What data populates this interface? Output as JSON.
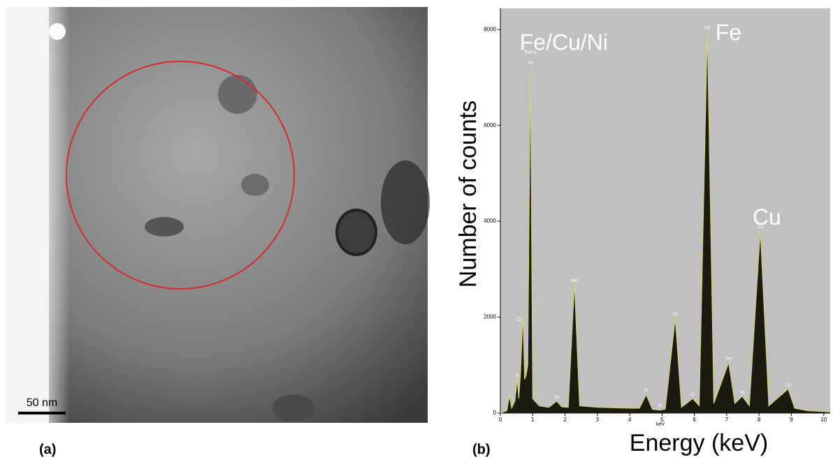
{
  "panel_a": {
    "label": "(a)",
    "scale_bar": "50 nm"
  },
  "chart_data": {
    "type": "line",
    "label": "(b)",
    "xlabel": "Energy (keV)",
    "ylabel": "Number of counts",
    "x_unit": "keV",
    "x": [
      0,
      0.2,
      0.28,
      0.35,
      0.45,
      0.52,
      0.57,
      0.62,
      0.7,
      0.75,
      0.8,
      0.85,
      0.93,
      1.0,
      1.2,
      1.5,
      1.74,
      1.9,
      2.1,
      2.29,
      2.45,
      3,
      4,
      4.3,
      4.51,
      4.7,
      4.93,
      5.1,
      5.41,
      5.6,
      5.95,
      6.15,
      6.4,
      6.6,
      7.06,
      7.25,
      7.48,
      7.7,
      8.04,
      8.3,
      8.9,
      9.1,
      9.5,
      10,
      10.2
    ],
    "values": [
      0,
      50,
      350,
      100,
      250,
      700,
      300,
      800,
      2050,
      700,
      800,
      1000,
      7200,
      300,
      150,
      120,
      250,
      130,
      120,
      2700,
      150,
      120,
      100,
      100,
      380,
      80,
      60,
      80,
      1980,
      120,
      300,
      150,
      7950,
      200,
      1050,
      200,
      350,
      150,
      3800,
      150,
      500,
      100,
      50,
      30,
      20
    ],
    "color": "#d8d860",
    "xlim": [
      0,
      10.2
    ],
    "ylim": [
      0,
      8440
    ],
    "xticks": [
      0,
      1,
      2,
      3,
      4,
      5,
      6,
      7,
      8,
      9,
      10
    ],
    "yticks": [
      0,
      2000,
      4000,
      6000,
      8000
    ],
    "labels_large": [
      {
        "text": "Fe/Cu/Ni",
        "x": 0.6,
        "y": 7700
      },
      {
        "text": "Fe",
        "x": 6.65,
        "y": 7900
      },
      {
        "text": "Cu",
        "x": 7.8,
        "y": 4050
      }
    ],
    "labels_small": [
      {
        "text": "FeCu",
        "x": 0.93,
        "y": 7520
      },
      {
        "text": "Ni",
        "x": 0.93,
        "y": 7300
      },
      {
        "text": "Cr",
        "x": 0.6,
        "y": 1950
      },
      {
        "text": "Ti",
        "x": 0.52,
        "y": 760
      },
      {
        "text": "Si",
        "x": 1.74,
        "y": 330
      },
      {
        "text": "Mo",
        "x": 2.29,
        "y": 2760
      },
      {
        "text": "Ti",
        "x": 4.51,
        "y": 460
      },
      {
        "text": "Ti",
        "x": 4.93,
        "y": 140
      },
      {
        "text": "Cr",
        "x": 5.41,
        "y": 2060
      },
      {
        "text": "Cr",
        "x": 5.95,
        "y": 380
      },
      {
        "text": "Fe",
        "x": 6.4,
        "y": 8030
      },
      {
        "text": "Fe",
        "x": 7.06,
        "y": 1130
      },
      {
        "text": "Ni",
        "x": 7.48,
        "y": 430
      },
      {
        "text": "Cu",
        "x": 8.04,
        "y": 3880
      },
      {
        "text": "Cu",
        "x": 8.9,
        "y": 580
      }
    ]
  }
}
